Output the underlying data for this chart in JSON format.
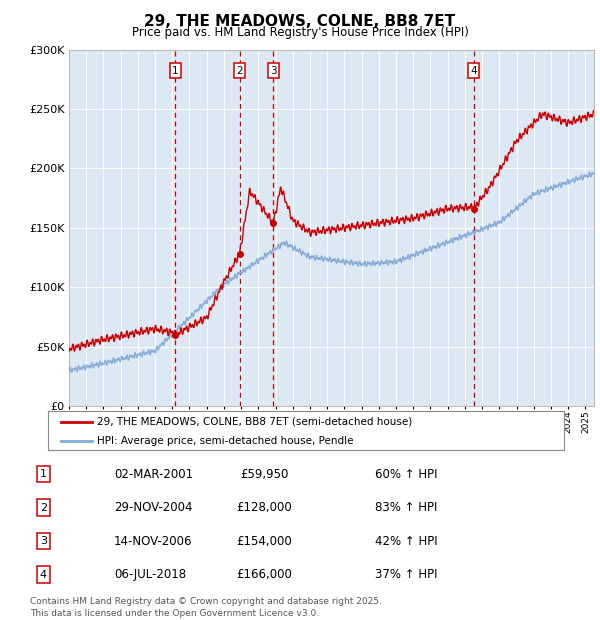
{
  "title": "29, THE MEADOWS, COLNE, BB8 7ET",
  "subtitle": "Price paid vs. HM Land Registry's House Price Index (HPI)",
  "background_color": "#dce9f5",
  "ylim": [
    0,
    300000
  ],
  "yticks": [
    0,
    50000,
    100000,
    150000,
    200000,
    250000,
    300000
  ],
  "sale_dates_num": [
    2001.17,
    2004.91,
    2006.87,
    2018.51
  ],
  "sale_prices": [
    59950,
    128000,
    154000,
    166000
  ],
  "sale_labels": [
    "1",
    "2",
    "3",
    "4"
  ],
  "sale_date_strs": [
    "02-MAR-2001",
    "29-NOV-2004",
    "14-NOV-2006",
    "06-JUL-2018"
  ],
  "sale_price_strs": [
    "£59,950",
    "£128,000",
    "£154,000",
    "£166,000"
  ],
  "sale_hpi_strs": [
    "60% ↑ HPI",
    "83% ↑ HPI",
    "42% ↑ HPI",
    "37% ↑ HPI"
  ],
  "legend_label_red": "29, THE MEADOWS, COLNE, BB8 7ET (semi-detached house)",
  "legend_label_blue": "HPI: Average price, semi-detached house, Pendle",
  "footer": "Contains HM Land Registry data © Crown copyright and database right 2025.\nThis data is licensed under the Open Government Licence v3.0.",
  "red_color": "#cc0000",
  "blue_color": "#88aad4",
  "xmin": 1995,
  "xmax": 2025.5
}
